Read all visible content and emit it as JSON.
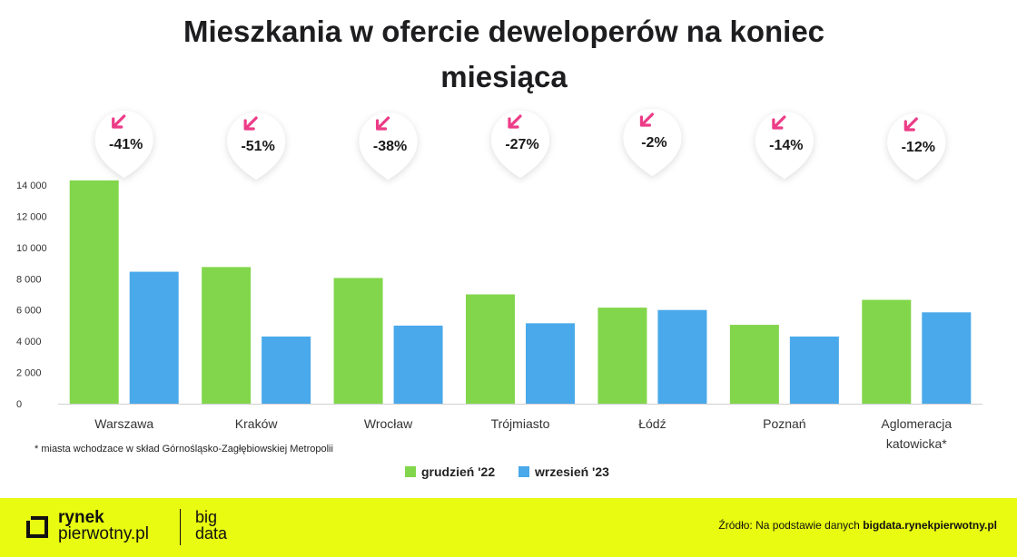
{
  "title_line1": "Mieszkania w ofercie deweloperów na koniec",
  "title_line2": "miesiąca",
  "colors": {
    "series1": "#82d64b",
    "series2": "#4aa9ea",
    "badge_arrow": "#ec3c87",
    "footer_bg": "#e8fb10"
  },
  "chart_data": {
    "type": "bar",
    "categories": [
      "Warszawa",
      "Kraków",
      "Wrocław",
      "Trójmiasto",
      "Łódź",
      "Poznań",
      "Aglomeracja katowicka*"
    ],
    "category_lines": [
      [
        "Warszawa"
      ],
      [
        "Kraków"
      ],
      [
        "Wrocław"
      ],
      [
        "Trójmiasto"
      ],
      [
        "Łódź"
      ],
      [
        "Poznań"
      ],
      [
        "Aglomeracja",
        "katowicka*"
      ]
    ],
    "series": [
      {
        "name": "grudzień '22",
        "values": [
          14300,
          8750,
          8050,
          7000,
          6150,
          5050,
          6650
        ]
      },
      {
        "name": "wrzesień '23",
        "values": [
          8450,
          4300,
          5000,
          5150,
          6000,
          4300,
          5850
        ]
      }
    ],
    "changes": [
      "-41%",
      "-51%",
      "-38%",
      "-27%",
      "-2%",
      "-14%",
      "-12%"
    ],
    "ylim": [
      0,
      14000
    ],
    "yticks": [
      0,
      2000,
      4000,
      6000,
      8000,
      10000,
      12000,
      14000
    ],
    "ytick_labels": [
      "0",
      "2 000",
      "4 000",
      "6 000",
      "8 000",
      "10 000",
      "12 000",
      "14 000"
    ],
    "grid": false,
    "legend_position": "bottom-center"
  },
  "footnote": "* miasta wchodzace w skład Górnośląsko-Zagłębiowskiej Metropolii",
  "footer": {
    "logo_line1": "rynek",
    "logo_line2": "pierwotny.pl",
    "logo_big1": "big",
    "logo_big2": "data",
    "source_prefix": "Źródło: Na podstawie danych ",
    "source_link": "bigdata.rynekpierwotny.pl"
  }
}
